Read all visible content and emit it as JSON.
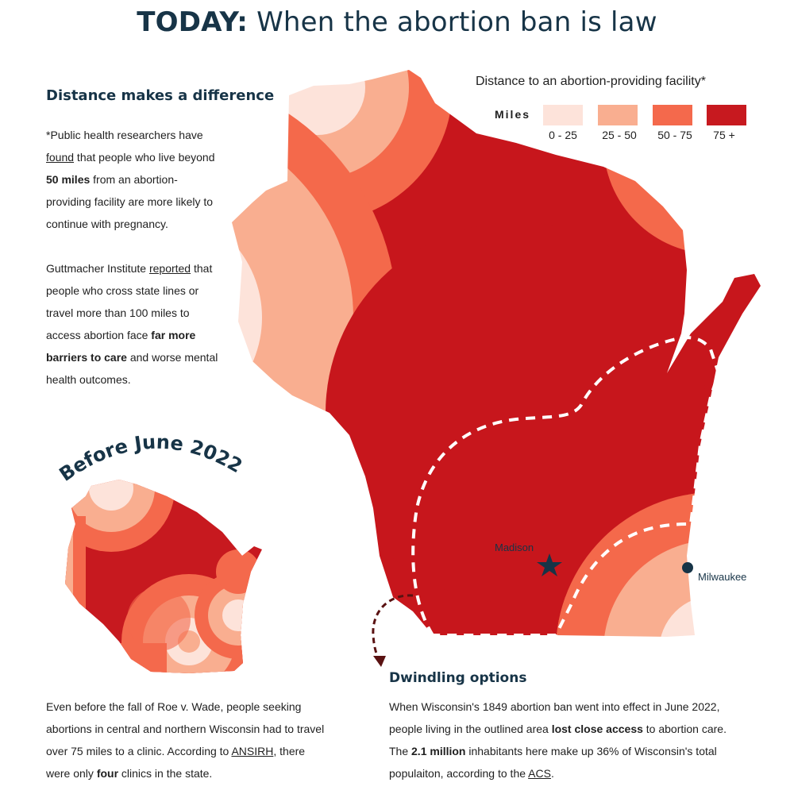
{
  "title": {
    "prefix": "TODAY:",
    "text": "When the abortion ban is law"
  },
  "distance_section": {
    "heading": "Distance makes a difference",
    "p1_a": "*Public health researchers have ",
    "p1_link": "found",
    "p1_b": " that people who live beyond ",
    "p1_bold": "50 miles",
    "p1_c": " from an abortion-providing facility are more likely to continue with pregnancy.",
    "p2_a": "Guttmacher Institute ",
    "p2_link": "reported",
    "p2_b": " that people who cross state lines or travel more than 100 miles to access abortion face ",
    "p2_bold": "far more barriers to care",
    "p2_c": " and worse mental health outcomes."
  },
  "legend": {
    "title": "Distance to an abortion-providing facility*",
    "unit": "Miles",
    "items": [
      {
        "label": "0 - 25",
        "color": "#fde3da"
      },
      {
        "label": "25 - 50",
        "color": "#f9ae90"
      },
      {
        "label": "50 - 75",
        "color": "#f4694c"
      },
      {
        "label": "75 +",
        "color": "#c7191f"
      }
    ]
  },
  "map": {
    "cities": [
      {
        "name": "Madison",
        "marker": "star"
      },
      {
        "name": "Milwaukee",
        "marker": "dot"
      }
    ]
  },
  "before_section": {
    "heading": "Before June 2022",
    "p_a": "Even before the fall of Roe v. Wade, people seeking abortions in central and northern Wisconsin had to travel over 75 miles to a clinic. According to ",
    "p_link": "ANSIRH",
    "p_b": ", there were only ",
    "p_bold": "four",
    "p_c": " clinics in the state."
  },
  "dwindling_section": {
    "heading": "Dwindling options",
    "p_a": "When Wisconsin's 1849 abortion ban went into effect in June 2022, people living in the outlined area ",
    "p_bold1": "lost close access",
    "p_b": " to abortion care. The ",
    "p_bold2": "2.1 million",
    "p_c": " inhabitants here make up 36% of Wisconsin's total populaiton, according to the ",
    "p_link": "ACS",
    "p_d": "."
  },
  "colors": {
    "navy": "#173447",
    "dark_red": "#c7191f",
    "arrow": "#5a1212"
  }
}
